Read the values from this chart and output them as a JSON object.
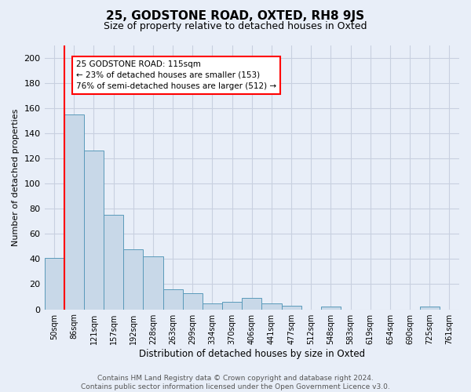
{
  "title": "25, GODSTONE ROAD, OXTED, RH8 9JS",
  "subtitle": "Size of property relative to detached houses in Oxted",
  "xlabel": "Distribution of detached houses by size in Oxted",
  "ylabel": "Number of detached properties",
  "bin_labels": [
    "50sqm",
    "86sqm",
    "121sqm",
    "157sqm",
    "192sqm",
    "228sqm",
    "263sqm",
    "299sqm",
    "334sqm",
    "370sqm",
    "406sqm",
    "441sqm",
    "477sqm",
    "512sqm",
    "548sqm",
    "583sqm",
    "619sqm",
    "654sqm",
    "690sqm",
    "725sqm",
    "761sqm"
  ],
  "bar_values": [
    41,
    155,
    126,
    75,
    48,
    42,
    16,
    13,
    5,
    6,
    9,
    5,
    3,
    0,
    2,
    0,
    0,
    0,
    0,
    2,
    0
  ],
  "bar_color": "#c8d8e8",
  "bar_edge_color": "#5a9aba",
  "red_line_x": 1,
  "annotation_text": "25 GODSTONE ROAD: 115sqm\n← 23% of detached houses are smaller (153)\n76% of semi-detached houses are larger (512) →",
  "annotation_box_color": "white",
  "annotation_box_edge_color": "red",
  "ylim": [
    0,
    210
  ],
  "yticks": [
    0,
    20,
    40,
    60,
    80,
    100,
    120,
    140,
    160,
    180,
    200
  ],
  "grid_color": "#c8d0e0",
  "bg_color": "#e8eef8",
  "footer_text": "Contains HM Land Registry data © Crown copyright and database right 2024.\nContains public sector information licensed under the Open Government Licence v3.0.",
  "title_fontsize": 11,
  "subtitle_fontsize": 9,
  "footer_fontsize": 6.5
}
